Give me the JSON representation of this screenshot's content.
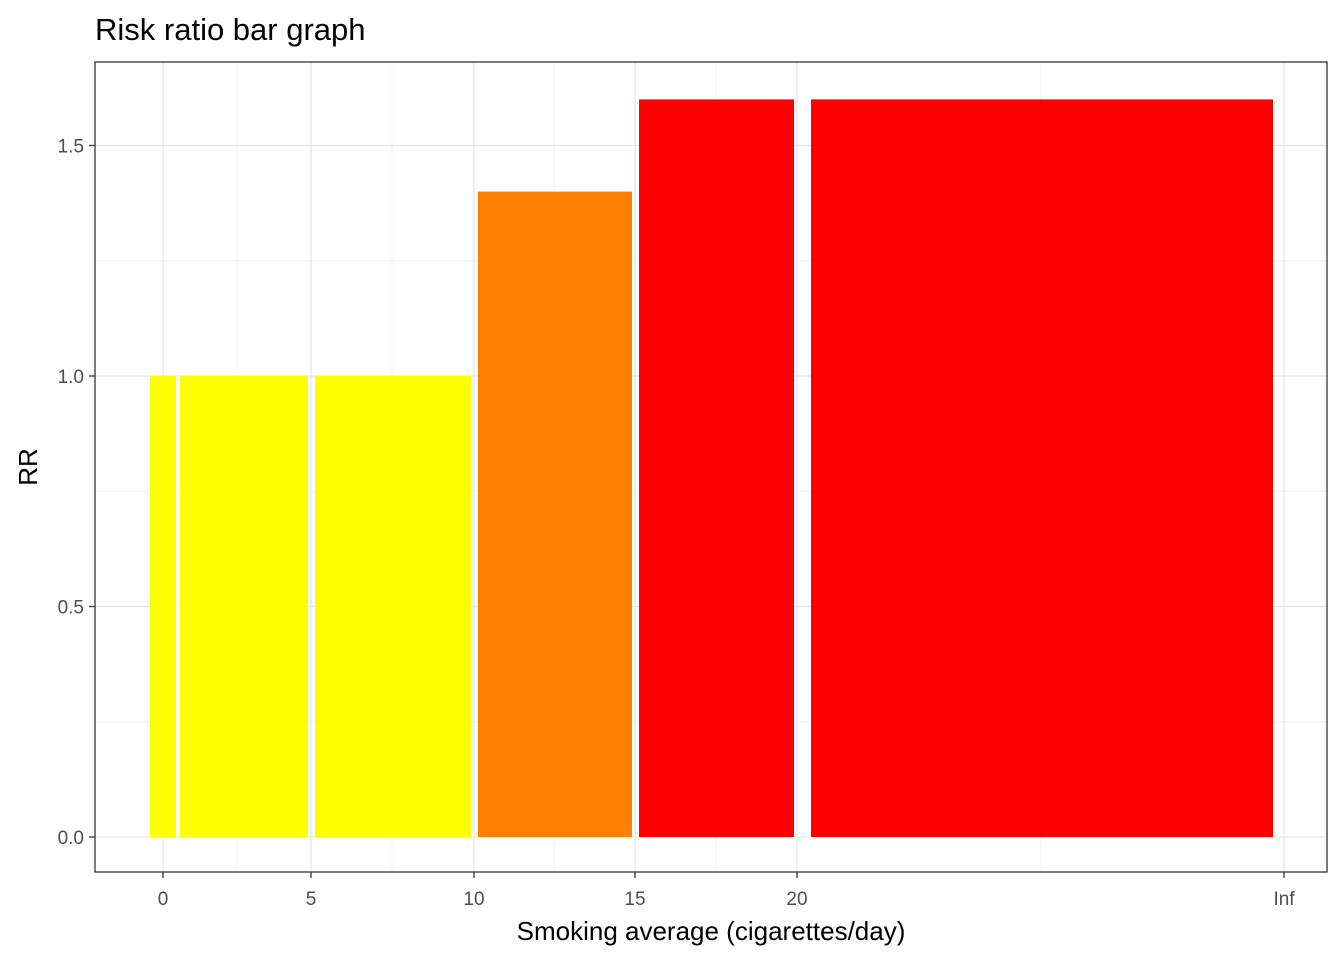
{
  "chart_data": {
    "type": "bar",
    "title": "Risk ratio bar graph",
    "xlabel": "Smoking average (cigarettes/day)",
    "ylabel": "RR",
    "x_tick_labels": [
      "0",
      "5",
      "10",
      "15",
      "20",
      "Inf"
    ],
    "y_tick_labels": [
      "0.0",
      "0.5",
      "1.0",
      "1.5"
    ],
    "ylim": [
      0,
      1.6
    ],
    "grid": true,
    "bars": [
      {
        "xmin": 0,
        "xmax": 0.5,
        "value": 1.0,
        "color": "#FFFF00"
      },
      {
        "xmin": 0.5,
        "xmax": 5,
        "value": 1.0,
        "color": "#FFFF00"
      },
      {
        "xmin": 5,
        "xmax": 10,
        "value": 1.0,
        "color": "#FFFF00"
      },
      {
        "xmin": 10,
        "xmax": 15,
        "value": 1.4,
        "color": "#FF8000"
      },
      {
        "xmin": 15,
        "xmax": 20,
        "value": 1.6,
        "color": "#FF0000"
      },
      {
        "xmin": 20,
        "xmax": "Inf",
        "value": 1.6,
        "color": "#FF0000"
      }
    ]
  }
}
